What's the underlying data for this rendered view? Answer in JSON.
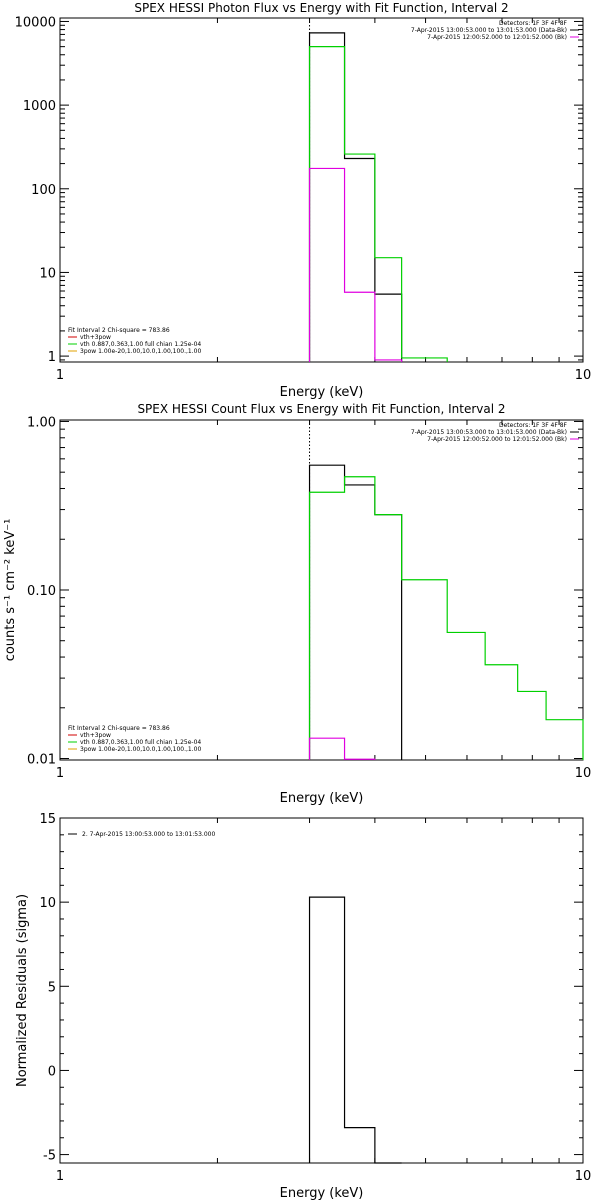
{
  "colors": {
    "black": "#000000",
    "green": "#00d000",
    "magenta": "#e000e0",
    "orange": "#e0a000",
    "red": "#d00000",
    "background": "#ffffff"
  },
  "chart_data": [
    {
      "type": "line",
      "title": "SPEX HESSI Photon Flux vs Energy with Fit Function, Interval 2",
      "xlabel": "Energy (keV)",
      "ylabel": "",
      "xscale": "log",
      "yscale": "log",
      "xlim": [
        1,
        10
      ],
      "ylim": [
        0.85,
        11000
      ],
      "xticks": [
        {
          "v": 1,
          "label": "1"
        },
        {
          "v": 10,
          "label": "10"
        }
      ],
      "yticks": [
        {
          "v": 1,
          "label": "1"
        },
        {
          "v": 10,
          "label": "10"
        },
        {
          "v": 100,
          "label": "100"
        },
        {
          "v": 1000,
          "label": "1000"
        },
        {
          "v": 10000,
          "label": "10000"
        }
      ],
      "vline": 3.0,
      "series": [
        {
          "name": "",
          "color": "black",
          "bins": [
            [
              3.0,
              3.5,
              7300
            ],
            [
              3.5,
              4.0,
              230
            ],
            [
              4.0,
              4.5,
              5.5
            ]
          ]
        },
        {
          "name": "",
          "color": "green",
          "bins": [
            [
              3.0,
              3.5,
              5000
            ],
            [
              3.5,
              4.0,
              260
            ],
            [
              4.0,
              4.5,
              15
            ],
            [
              4.5,
              5.5,
              0.95
            ]
          ]
        },
        {
          "name": "",
          "color": "magenta",
          "bins": [
            [
              3.0,
              3.5,
              175
            ],
            [
              3.5,
              4.0,
              5.8
            ],
            [
              4.0,
              4.5,
              0.9
            ]
          ]
        }
      ],
      "header_lines": [
        {
          "text": "Detectors: 1F 3F 4F 8F",
          "color": "black"
        },
        {
          "text": "7-Apr-2015 13:00:53.000 to 13:01:53.000 (Data-Bk)",
          "color": "black"
        },
        {
          "text": "7-Apr-2015 12:00:52.000 to 12:01:52.000 (Bk)",
          "color": "magenta"
        }
      ],
      "fit_lines": [
        {
          "text": "Fit Interval 2   Chi-square = 783.86",
          "color": "black"
        },
        {
          "text": "vth+3pow",
          "color": "red"
        },
        {
          "text": "vth 0.887,0.363,1.00  full chian 1.25e-04",
          "color": "green"
        },
        {
          "text": "3pow 1.00e-20,1.00,10.0,1.00,100.,1.00",
          "color": "orange"
        }
      ]
    },
    {
      "type": "line",
      "title": "SPEX HESSI Count Flux vs Energy with Fit Function, Interval 2",
      "xlabel": "Energy (keV)",
      "ylabel": "counts s⁻¹ cm⁻² keV⁻¹",
      "xscale": "log",
      "yscale": "log",
      "xlim": [
        1,
        10
      ],
      "ylim": [
        0.0098,
        1.02
      ],
      "xticks": [
        {
          "v": 1,
          "label": "1"
        },
        {
          "v": 10,
          "label": "10"
        }
      ],
      "yticks": [
        {
          "v": 0.01,
          "label": "0.01"
        },
        {
          "v": 0.1,
          "label": "0.10"
        },
        {
          "v": 1,
          "label": "1.00"
        }
      ],
      "vline": 3.0,
      "series": [
        {
          "name": "",
          "color": "black",
          "bins": [
            [
              3.0,
              3.5,
              0.55
            ],
            [
              3.5,
              4.0,
              0.42
            ],
            [
              4.0,
              4.5,
              0.28
            ]
          ]
        },
        {
          "name": "",
          "color": "green",
          "bins": [
            [
              3.0,
              3.5,
              0.38
            ],
            [
              3.5,
              4.0,
              0.47
            ],
            [
              4.0,
              4.5,
              0.28
            ],
            [
              4.5,
              5.5,
              0.115
            ],
            [
              5.5,
              6.5,
              0.056
            ],
            [
              6.5,
              7.5,
              0.036
            ],
            [
              7.5,
              8.5,
              0.025
            ],
            [
              8.5,
              10.0,
              0.017
            ]
          ]
        },
        {
          "name": "",
          "color": "magenta",
          "bins": [
            [
              3.0,
              3.5,
              0.0132
            ],
            [
              3.5,
              4.0,
              0.0099
            ]
          ]
        }
      ],
      "header_lines": [
        {
          "text": "Detectors: 1F 3F 4F 8F",
          "color": "black"
        },
        {
          "text": "7-Apr-2015 13:00:53.000 to 13:01:53.000 (Data-Bk)",
          "color": "black"
        },
        {
          "text": "7-Apr-2015 12:00:52.000 to 12:01:52.000 (Bk)",
          "color": "magenta"
        }
      ],
      "fit_lines": [
        {
          "text": "Fit Interval 2   Chi-square = 783.86",
          "color": "black"
        },
        {
          "text": "vth+3pow",
          "color": "red"
        },
        {
          "text": "vth 0.887,0.363,1.00  full chian 1.25e-04",
          "color": "green"
        },
        {
          "text": "3pow 1.00e-20,1.00,10.0,1.00,100.,1.00",
          "color": "orange"
        }
      ]
    },
    {
      "type": "line",
      "title": "",
      "xlabel": "Energy (keV)",
      "ylabel": "Normalized Residuals (sigma)",
      "xscale": "log",
      "yscale": "linear",
      "xlim": [
        1,
        10
      ],
      "ylim": [
        -5.5,
        15
      ],
      "xticks": [
        {
          "v": 1,
          "label": "1"
        },
        {
          "v": 10,
          "label": "10"
        }
      ],
      "yticks": [
        {
          "v": -5,
          "label": "-5"
        },
        {
          "v": 0,
          "label": "0"
        },
        {
          "v": 5,
          "label": "5"
        },
        {
          "v": 10,
          "label": "10"
        },
        {
          "v": 15,
          "label": "15"
        }
      ],
      "vline": null,
      "series": [
        {
          "name": "",
          "color": "black",
          "bins": [
            [
              3.0,
              3.5,
              10.3
            ],
            [
              3.5,
              4.0,
              -3.4
            ],
            [
              4.0,
              4.5,
              -5.5
            ]
          ]
        }
      ],
      "header_lines": [],
      "fit_lines": [],
      "legend_lines": [
        {
          "text": "2.  7-Apr-2015 13:00:53.000 to 13:01:53.000",
          "color": "black"
        }
      ]
    }
  ]
}
